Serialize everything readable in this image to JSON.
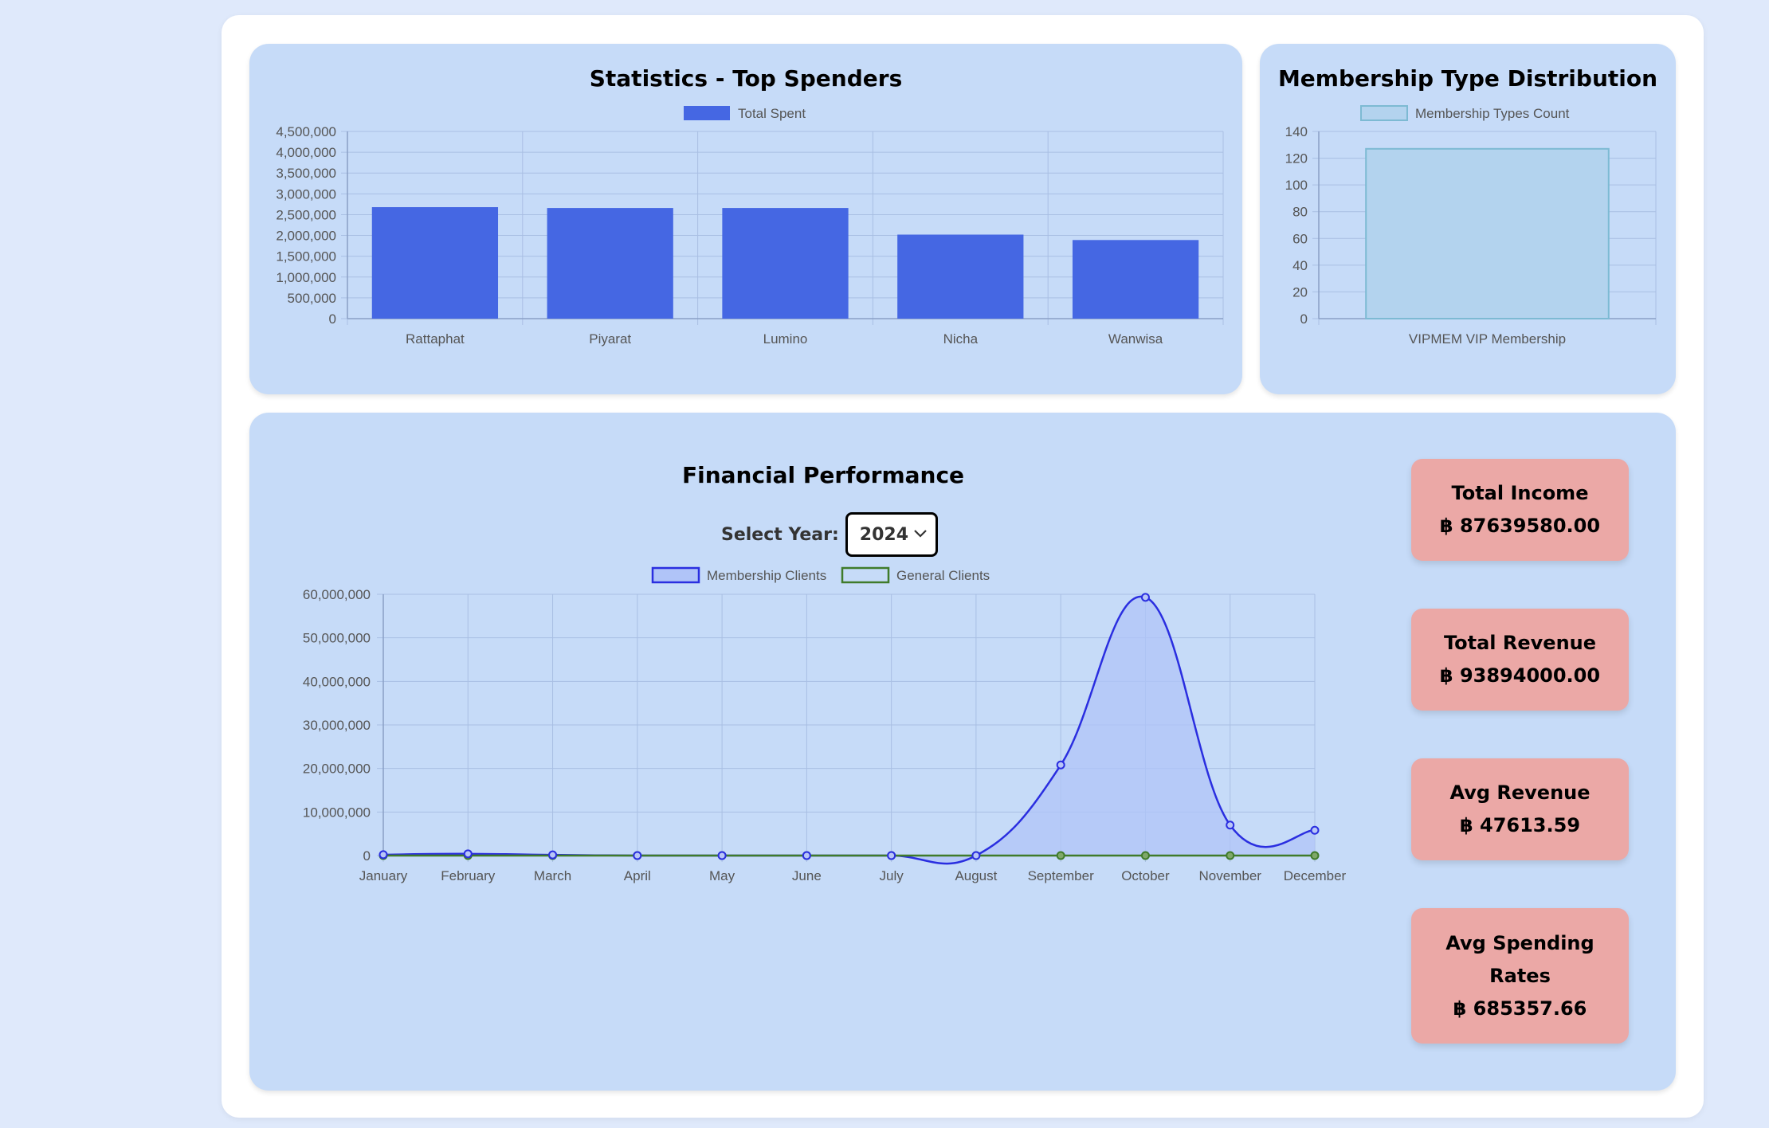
{
  "top_spenders": {
    "title": "Statistics - Top Spenders",
    "chart_data": {
      "type": "bar",
      "title": "Statistics - Top Spenders",
      "legend": "Total Spent",
      "legend_position": "top",
      "categories": [
        "Rattaphat",
        "Piyarat",
        "Lumino",
        "Nicha",
        "Wanwisa"
      ],
      "series": [
        {
          "name": "Total Spent",
          "values": [
            2680000,
            2660000,
            2660000,
            2020000,
            1890000
          ]
        }
      ],
      "ylim": [
        0,
        4500000
      ],
      "yticks": [
        0,
        500000,
        1000000,
        1500000,
        2000000,
        2500000,
        3000000,
        3500000,
        4000000,
        4500000
      ],
      "ytick_labels": [
        "0",
        "500,000",
        "1,000,000",
        "1,500,000",
        "2,000,000",
        "2,500,000",
        "3,000,000",
        "3,500,000",
        "4,000,000",
        "4,500,000"
      ],
      "grid": true,
      "colors": {
        "bar": "#4567e3",
        "grid": "#a9bfe3",
        "axis": "#8aa0c6",
        "text": "#555555"
      }
    }
  },
  "membership": {
    "title": "Membership Type Distribution",
    "chart_data": {
      "type": "bar",
      "title": "Membership Type Distribution",
      "legend": "Membership Types Count",
      "legend_position": "top",
      "categories": [
        "VIPMEM VIP Membership"
      ],
      "series": [
        {
          "name": "Membership Types Count",
          "values": [
            127
          ]
        }
      ],
      "ylim": [
        0,
        140
      ],
      "yticks": [
        0,
        20,
        40,
        60,
        80,
        100,
        120,
        140
      ],
      "ytick_labels": [
        "0",
        "20",
        "40",
        "60",
        "80",
        "100",
        "120",
        "140"
      ],
      "grid": true,
      "colors": {
        "bar": "#b3d3ee",
        "bar_border": "#7dbad3",
        "grid": "#a9bfe3",
        "axis": "#8aa0c6",
        "text": "#555555"
      }
    }
  },
  "financial": {
    "title": "Financial Performance",
    "select_label": "Select Year:",
    "selected_year": "2024",
    "chart_data": {
      "type": "line",
      "x": [
        "January",
        "February",
        "March",
        "April",
        "May",
        "June",
        "July",
        "August",
        "September",
        "October",
        "November",
        "December"
      ],
      "series": [
        {
          "name": "Membership Clients",
          "values": [
            200000,
            400000,
            150000,
            0,
            0,
            0,
            0,
            0,
            20800000,
            59300000,
            7000000,
            5800000
          ],
          "fill": true
        },
        {
          "name": "General Clients",
          "values": [
            0,
            0,
            0,
            0,
            0,
            0,
            0,
            0,
            0,
            0,
            0,
            0
          ],
          "fill": false
        }
      ],
      "ylim": [
        0,
        60000000
      ],
      "yticks": [
        0,
        10000000,
        20000000,
        30000000,
        40000000,
        50000000,
        60000000
      ],
      "ytick_labels": [
        "0",
        "10,000,000",
        "20,000,000",
        "30,000,000",
        "40,000,000",
        "50,000,000",
        "60,000,000"
      ],
      "grid": true,
      "legend_position": "top",
      "colors": {
        "membership": "#2a2ee0",
        "membership_fill": "#b0c4f8",
        "general": "#3f7b2a",
        "grid": "#a9bfe3",
        "axis": "#8aa0c6",
        "text": "#555555"
      }
    }
  },
  "stats": [
    {
      "label": "Total Income",
      "value": "฿ 87639580.00"
    },
    {
      "label": "Total Revenue",
      "value": "฿ 93894000.00"
    },
    {
      "label": "Avg Revenue",
      "value": "฿ 47613.59"
    },
    {
      "label": "Avg Spending Rates",
      "value": "฿ 685357.66"
    }
  ]
}
